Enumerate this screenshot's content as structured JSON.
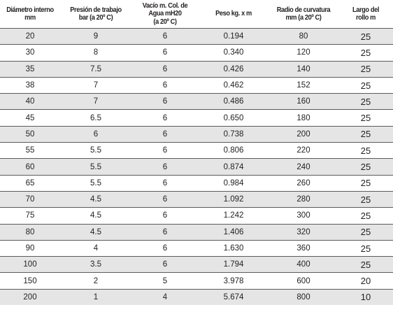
{
  "headers": [
    "Diámetro interno\nmm",
    "Presión de trabajo\nbar (a 20º C)",
    "Vacío m. Col. de\nAgua mH20\n(a 20º C)",
    "Peso kg. x m",
    "Radio de curvatura\nmm (a 20º C)",
    "Largo del\nrollo m"
  ],
  "rows": [
    [
      "20",
      "9",
      "6",
      "0.194",
      "80",
      "25"
    ],
    [
      "30",
      "8",
      "6",
      "0.340",
      "120",
      "25"
    ],
    [
      "35",
      "7.5",
      "6",
      "0.426",
      "140",
      "25"
    ],
    [
      "38",
      "7",
      "6",
      "0.462",
      "152",
      "25"
    ],
    [
      "40",
      "7",
      "6",
      "0.486",
      "160",
      "25"
    ],
    [
      "45",
      "6.5",
      "6",
      "0.650",
      "180",
      "25"
    ],
    [
      "50",
      "6",
      "6",
      "0.738",
      "200",
      "25"
    ],
    [
      "55",
      "5.5",
      "6",
      "0.806",
      "220",
      "25"
    ],
    [
      "60",
      "5.5",
      "6",
      "0.874",
      "240",
      "25"
    ],
    [
      "65",
      "5.5",
      "6",
      "0.984",
      "260",
      "25"
    ],
    [
      "70",
      "4.5",
      "6",
      "1.092",
      "280",
      "25"
    ],
    [
      "75",
      "4.5",
      "6",
      "1.242",
      "300",
      "25"
    ],
    [
      "80",
      "4.5",
      "6",
      "1.406",
      "320",
      "25"
    ],
    [
      "90",
      "4",
      "6",
      "1.630",
      "360",
      "25"
    ],
    [
      "100",
      "3.5",
      "6",
      "1.794",
      "400",
      "25"
    ],
    [
      "150",
      "2",
      "5",
      "3.978",
      "600",
      "20"
    ],
    [
      "200",
      "1",
      "4",
      "5.674",
      "800",
      "10"
    ]
  ],
  "colors": {
    "shaded_row": "#e5e5e6",
    "plain_row": "#ffffff",
    "separator": "#5a5b5e",
    "text": "#231f20"
  }
}
